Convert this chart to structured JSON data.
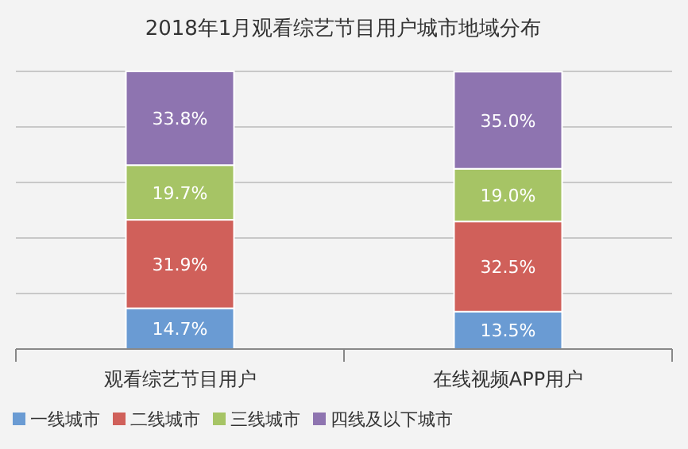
{
  "chart_data": {
    "type": "bar",
    "title": "2018年1月观看综艺节目用户城市地域分布",
    "categories": [
      "观看综艺节目用户",
      "在线视频APP用户"
    ],
    "stacked": true,
    "grid": "y",
    "legend": "bottom left",
    "tick_labels": "x",
    "series": [
      {
        "name": "一线城市",
        "color": "#6a9bd3",
        "values": [
          14.7,
          13.5
        ],
        "value_labels": [
          "14.7%",
          "13.5%"
        ]
      },
      {
        "name": "二线城市",
        "color": "#d0605a",
        "values": [
          31.9,
          32.5
        ],
        "value_labels": [
          "31.9%",
          "32.5%"
        ]
      },
      {
        "name": "三线城市",
        "color": "#a6c465",
        "values": [
          19.7,
          19.0
        ],
        "value_labels": [
          "19.7%",
          "19.0%"
        ]
      },
      {
        "name": "四线及以下城市",
        "color": "#8e74b0",
        "values": [
          33.8,
          35.0
        ],
        "value_labels": [
          "33.8%",
          "35.0%"
        ]
      }
    ]
  }
}
